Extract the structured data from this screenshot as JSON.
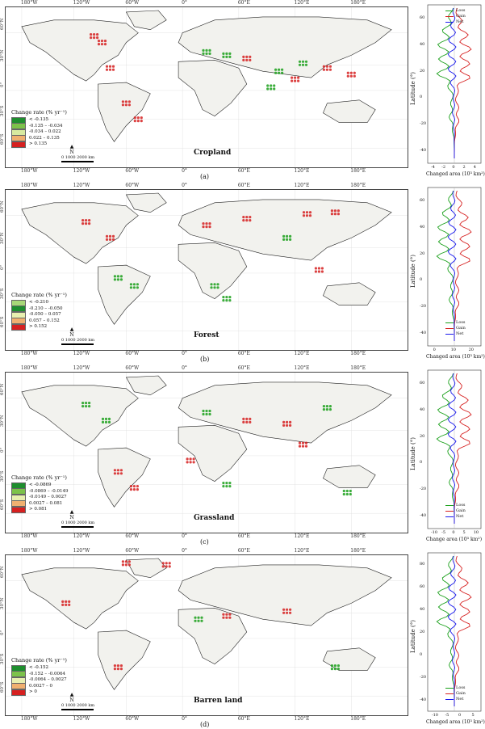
{
  "longitude_ticks_top": [
    "180°W",
    "120°W",
    "60°W",
    "0°",
    "60°E",
    "120°E",
    "180°E"
  ],
  "longitude_ticks_bottom": [
    "180°W",
    "120°W",
    "60°W",
    "0°",
    "60°E",
    "120°E",
    "180°E"
  ],
  "latitude_ticks": [
    "60°N",
    "30°N",
    "0°",
    "30°S",
    "60°S"
  ],
  "colors": {
    "loss": "#1aa01a",
    "gain": "#d62020",
    "net": "#1a1aee",
    "land": "#f2f2ee",
    "border": "#222"
  },
  "panels": [
    {
      "map_title": "Cropland",
      "subfig": "(a)",
      "legend_title": "Change rate (% yr⁻¹)",
      "legend_items": [
        {
          "label": "< -0.135",
          "color": "#1e8e2e"
        },
        {
          "label": "-0.135 – -0.034",
          "color": "#7cc24a"
        },
        {
          "label": "-0.034 – 0.022",
          "color": "#d8eaa0"
        },
        {
          "label": "0.022 – 0.135",
          "color": "#f0b070"
        },
        {
          "label": "> 0.135",
          "color": "#d62020"
        }
      ],
      "scale_label": "0  1000 2000 km",
      "north": "N",
      "chart_ylabel": "Latitude (°)",
      "chart_xlabel": "Changed area (10³ km²)",
      "chart_legend": [
        "Loss",
        "Gain",
        "Net"
      ],
      "chart_yticks": [
        "60",
        "40",
        "20",
        "0",
        "-20",
        "-40"
      ],
      "chart_xticks": [
        "-4",
        "-2",
        "0",
        "2",
        "4"
      ],
      "dots": [
        [
          0.22,
          0.18,
          "r"
        ],
        [
          0.24,
          0.22,
          "r"
        ],
        [
          0.26,
          0.38,
          "r"
        ],
        [
          0.5,
          0.28,
          "g"
        ],
        [
          0.55,
          0.3,
          "g"
        ],
        [
          0.6,
          0.32,
          "r"
        ],
        [
          0.68,
          0.4,
          "g"
        ],
        [
          0.72,
          0.45,
          "r"
        ],
        [
          0.74,
          0.35,
          "g"
        ],
        [
          0.8,
          0.38,
          "r"
        ],
        [
          0.3,
          0.6,
          "r"
        ],
        [
          0.33,
          0.7,
          "r"
        ],
        [
          0.66,
          0.5,
          "g"
        ],
        [
          0.86,
          0.42,
          "r"
        ]
      ]
    },
    {
      "map_title": "Forest",
      "subfig": "(b)",
      "legend_title": "Change rate (% yr⁻¹)",
      "legend_items": [
        {
          "label": "< -0.210",
          "color": "#a8d878"
        },
        {
          "label": "-0.210 – -0.050",
          "color": "#1e8e2e"
        },
        {
          "label": "-0.050 – 0.057",
          "color": "#e8efb0"
        },
        {
          "label": "0.057 – 0.152",
          "color": "#f0b070"
        },
        {
          "label": "> 0.152",
          "color": "#d62020"
        }
      ],
      "scale_label": "0  1000 2000 km",
      "north": "N",
      "chart_ylabel": "Latitude (°)",
      "chart_xlabel": "Changed area (10³ km²)",
      "chart_legend": [
        "Loss",
        "Gain",
        "Net"
      ],
      "chart_yticks": [
        "60",
        "40",
        "20",
        "0",
        "-20",
        "-40"
      ],
      "chart_xticks": [
        "0",
        "10",
        "20"
      ],
      "dots": [
        [
          0.2,
          0.2,
          "r"
        ],
        [
          0.26,
          0.3,
          "r"
        ],
        [
          0.5,
          0.22,
          "r"
        ],
        [
          0.6,
          0.18,
          "r"
        ],
        [
          0.75,
          0.15,
          "r"
        ],
        [
          0.82,
          0.14,
          "r"
        ],
        [
          0.28,
          0.55,
          "g"
        ],
        [
          0.32,
          0.6,
          "g"
        ],
        [
          0.52,
          0.6,
          "g"
        ],
        [
          0.55,
          0.68,
          "g"
        ],
        [
          0.78,
          0.5,
          "r"
        ],
        [
          0.7,
          0.3,
          "g"
        ]
      ]
    },
    {
      "map_title": "Grassland",
      "subfig": "(c)",
      "legend_title": "Change rate (% yr⁻¹)",
      "legend_items": [
        {
          "label": "< -0.0869",
          "color": "#1e8e2e"
        },
        {
          "label": "-0.0869 – -0.0149",
          "color": "#7cc24a"
        },
        {
          "label": "-0.0149 – 0.0027",
          "color": "#e8efb0"
        },
        {
          "label": "0.0027 – 0.081",
          "color": "#f0b070"
        },
        {
          "label": "> 0.081",
          "color": "#d62020"
        }
      ],
      "scale_label": "0  1000 2000 km",
      "north": "N",
      "chart_ylabel": "Latitude (°)",
      "chart_xlabel": "Change area (10³ km²)",
      "chart_legend": [
        "Loss",
        "Gain",
        "Net"
      ],
      "chart_yticks": [
        "60",
        "40",
        "20",
        "0",
        "-20",
        "-40"
      ],
      "chart_xticks": [
        "-10",
        "-5",
        "0",
        "5",
        "10"
      ],
      "dots": [
        [
          0.2,
          0.2,
          "g"
        ],
        [
          0.25,
          0.3,
          "g"
        ],
        [
          0.5,
          0.25,
          "g"
        ],
        [
          0.6,
          0.3,
          "r"
        ],
        [
          0.7,
          0.32,
          "r"
        ],
        [
          0.8,
          0.22,
          "g"
        ],
        [
          0.46,
          0.55,
          "r"
        ],
        [
          0.28,
          0.62,
          "r"
        ],
        [
          0.32,
          0.72,
          "r"
        ],
        [
          0.55,
          0.7,
          "g"
        ],
        [
          0.85,
          0.75,
          "g"
        ],
        [
          0.74,
          0.45,
          "r"
        ]
      ]
    },
    {
      "map_title": "Barren land",
      "subfig": "(d)",
      "legend_title": "Change rate (% yr⁻¹)",
      "legend_items": [
        {
          "label": "< -0.152",
          "color": "#1e8e2e"
        },
        {
          "label": "-0.152 – -0.0064",
          "color": "#7cc24a"
        },
        {
          "label": "-0.0064 – 0.0027",
          "color": "#e8efb0"
        },
        {
          "label": "0.0027 – 0",
          "color": "#f0b070"
        },
        {
          "label": "> 0",
          "color": "#d62020"
        }
      ],
      "scale_label": "0  1000 2000 km",
      "north": "N",
      "chart_ylabel": "Latitude (°)",
      "chart_xlabel": "Changed area (10³ km²)",
      "chart_legend": [
        "Loss",
        "Gain",
        "Net"
      ],
      "chart_yticks": [
        "80",
        "60",
        "40",
        "20",
        "0",
        "-20",
        "-40"
      ],
      "chart_xticks": [
        "-10",
        "-5",
        "0",
        "5"
      ],
      "dots": [
        [
          0.3,
          0.05,
          "r"
        ],
        [
          0.4,
          0.06,
          "r"
        ],
        [
          0.15,
          0.3,
          "r"
        ],
        [
          0.48,
          0.4,
          "g"
        ],
        [
          0.55,
          0.38,
          "r"
        ],
        [
          0.7,
          0.35,
          "r"
        ],
        [
          0.28,
          0.7,
          "r"
        ],
        [
          0.82,
          0.7,
          "g"
        ]
      ]
    }
  ]
}
